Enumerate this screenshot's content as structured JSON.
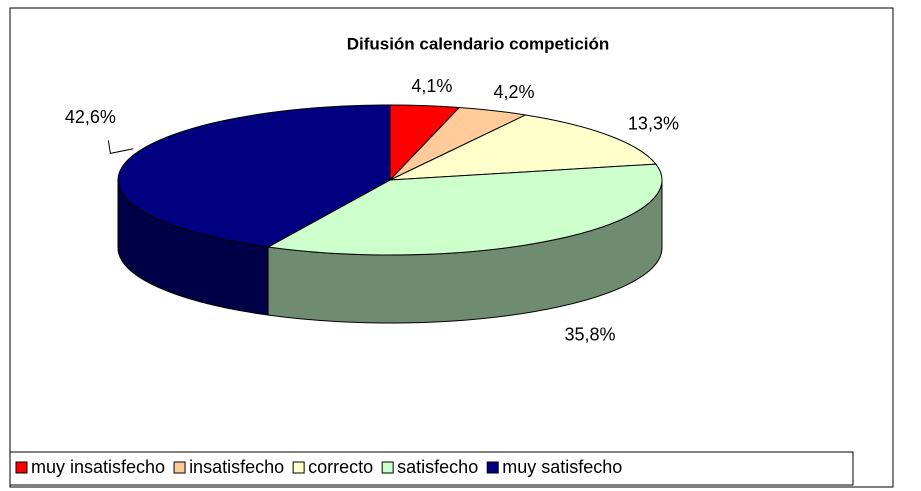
{
  "chart_data": {
    "type": "pie",
    "title": "Difusión calendario competición",
    "categories": [
      "muy insatisfecho",
      "insatisfecho",
      "correcto",
      "satisfecho",
      "muy satisfecho"
    ],
    "values": [
      4.1,
      4.2,
      13.3,
      35.8,
      42.6
    ],
    "value_labels": [
      "4,1%",
      "4,2%",
      "13,3%",
      "35,8%",
      "42,6%"
    ],
    "colors": [
      "#ff0000",
      "#ffcc99",
      "#ffffcc",
      "#ccffcc",
      "#000080"
    ],
    "legend": "bottom"
  }
}
